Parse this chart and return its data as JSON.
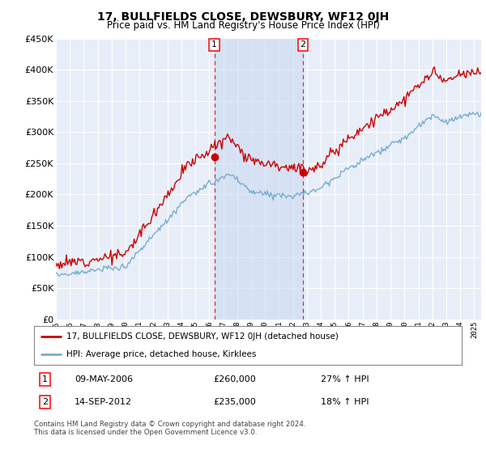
{
  "title": "17, BULLFIELDS CLOSE, DEWSBURY, WF12 0JH",
  "subtitle": "Price paid vs. HM Land Registry's House Price Index (HPI)",
  "ylim": [
    0,
    450000
  ],
  "yticks": [
    0,
    50000,
    100000,
    150000,
    200000,
    250000,
    300000,
    350000,
    400000,
    450000
  ],
  "background_color": "#ffffff",
  "plot_bg_color": "#e8eef8",
  "grid_color": "#ffffff",
  "red_line_color": "#cc0000",
  "blue_line_color": "#7aadcf",
  "transaction1": {
    "date": "09-MAY-2006",
    "price": 260000,
    "pct": "27%",
    "label": "1"
  },
  "transaction2": {
    "date": "14-SEP-2012",
    "price": 235000,
    "pct": "18%",
    "label": "2"
  },
  "vline1_x": 2006.37,
  "vline2_x": 2012.71,
  "legend_red_label": "17, BULLFIELDS CLOSE, DEWSBURY, WF12 0JH (detached house)",
  "legend_blue_label": "HPI: Average price, detached house, Kirklees",
  "footer": "Contains HM Land Registry data © Crown copyright and database right 2024.\nThis data is licensed under the Open Government Licence v3.0.",
  "xmin": 1995,
  "xmax": 2025.5
}
